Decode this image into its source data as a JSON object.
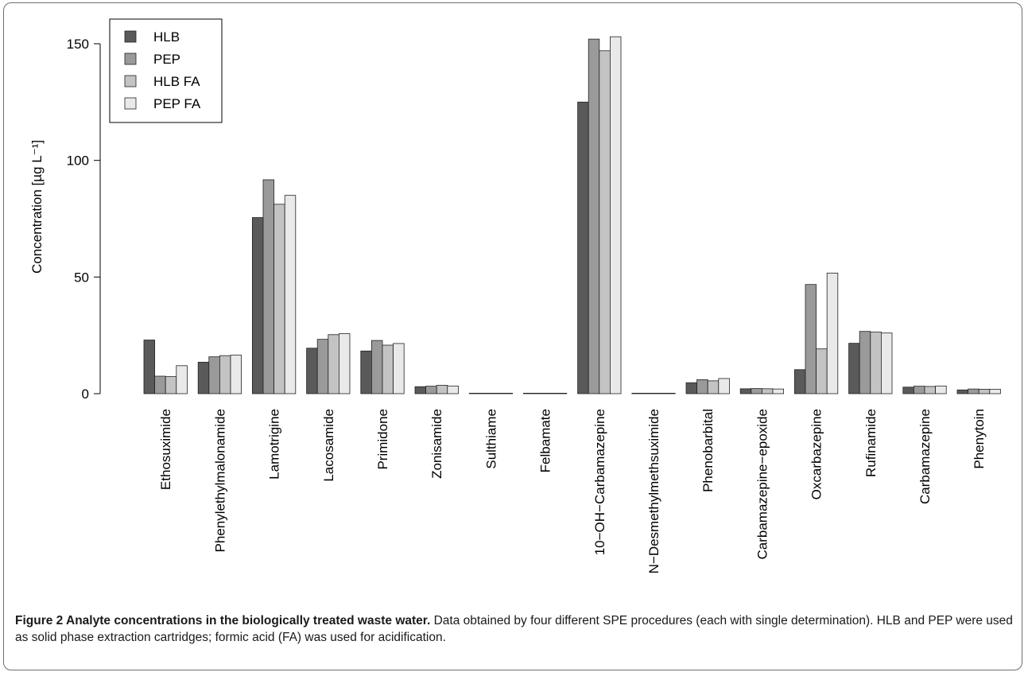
{
  "chart_data": {
    "type": "bar",
    "ylabel": "Concentration  [µg L⁻¹]",
    "ylim": [
      0,
      155
    ],
    "yticks": [
      0,
      50,
      100,
      150
    ],
    "grid": false,
    "legend_position": "top-left",
    "categories": [
      "Ethosuximide",
      "Phenylethylmalonamide",
      "Lamotrigine",
      "Lacosamide",
      "Primidone",
      "Zonisamide",
      "Sulthiame",
      "Felbamate",
      "10−OH−Carbamazepine",
      "N−Desmethylmethsuximide",
      "Phenobarbital",
      "Carbamazepine−epoxide",
      "Oxcarbazepine",
      "Rufinamide",
      "Carbamazepine",
      "Phenytoin"
    ],
    "series": [
      {
        "name": "HLB",
        "color": "#5a5a5a",
        "values": [
          23,
          13.5,
          75.5,
          19.5,
          18.3,
          3,
          0.1,
          0.1,
          125,
          0.1,
          4.7,
          2.1,
          10.3,
          21.6,
          2.8,
          1.6
        ]
      },
      {
        "name": "PEP",
        "color": "#9a9a9a",
        "values": [
          7.5,
          15.8,
          91.7,
          23.3,
          22.8,
          3.2,
          0.1,
          0.1,
          152,
          0.1,
          6,
          2.2,
          46.8,
          26.7,
          3.2,
          2
        ]
      },
      {
        "name": "HLB FA",
        "color": "#c3c3c3",
        "values": [
          7.3,
          16.3,
          81.2,
          25.3,
          20.8,
          3.6,
          0.1,
          0.1,
          147,
          0.1,
          5.5,
          2.1,
          19.2,
          26.4,
          3.1,
          1.9
        ]
      },
      {
        "name": "PEP FA",
        "color": "#e9e9e9",
        "values": [
          12,
          16.5,
          85,
          25.7,
          21.5,
          3.3,
          0.1,
          0.1,
          153,
          0.1,
          6.5,
          2,
          51.7,
          26,
          3.3,
          1.9
        ]
      }
    ]
  },
  "caption": {
    "title": "Figure 2 Analyte concentrations in the biologically treated waste water.",
    "text": " Data obtained by four different SPE procedures (each with single determination). HLB and PEP were used as solid phase extraction cartridges; formic acid (FA) was used for acidification."
  }
}
